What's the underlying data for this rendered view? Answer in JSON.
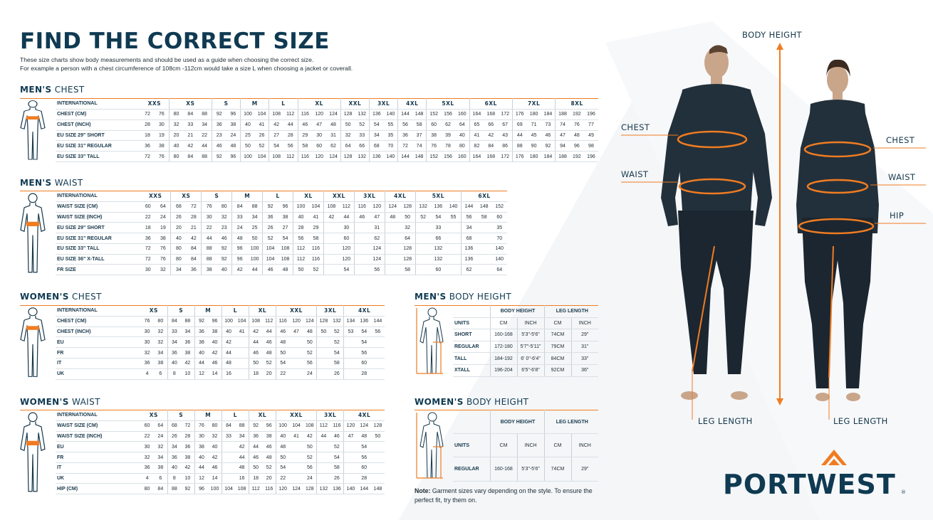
{
  "header": {
    "title": "FIND THE CORRECT SIZE",
    "intro_line1": "These size charts show body measurements and should be used as a guide when choosing the correct size.",
    "intro_line2": "For example a person with a chest circumference of 108cm -112cm would take a size L when choosing a jacket or coverall."
  },
  "colors": {
    "navy": "#0f3a52",
    "orange": "#f07c22"
  },
  "men_chest": {
    "title_bold": "MEN'S",
    "title_rest": "CHEST",
    "header_label": "INTERNATIONAL",
    "groups": [
      {
        "label": "XXS",
        "span": 2
      },
      {
        "label": "XS",
        "span": 3
      },
      {
        "label": "S",
        "span": 2
      },
      {
        "label": "M",
        "span": 2
      },
      {
        "label": "L",
        "span": 2
      },
      {
        "label": "XL",
        "span": 3
      },
      {
        "label": "XXL",
        "span": 2
      },
      {
        "label": "3XL",
        "span": 2
      },
      {
        "label": "4XL",
        "span": 2
      },
      {
        "label": "5XL",
        "span": 3
      },
      {
        "label": "6XL",
        "span": 3
      },
      {
        "label": "7XL",
        "span": 3
      },
      {
        "label": "8XL",
        "span": 3
      }
    ],
    "rows": [
      {
        "label": "CHEST (CM)",
        "values": [
          "72",
          "76",
          "80",
          "84",
          "88",
          "92",
          "96",
          "100",
          "104",
          "108",
          "112",
          "116",
          "120",
          "124",
          "128",
          "132",
          "136",
          "140",
          "144",
          "148",
          "152",
          "156",
          "160",
          "164",
          "168",
          "172",
          "176",
          "180",
          "184",
          "188",
          "192",
          "196"
        ]
      },
      {
        "label": "CHEST (INCH)",
        "values": [
          "28",
          "30",
          "32",
          "33",
          "34",
          "36",
          "38",
          "40",
          "41",
          "42",
          "44",
          "46",
          "47",
          "48",
          "50",
          "52",
          "54",
          "55",
          "56",
          "58",
          "60",
          "62",
          "64",
          "65",
          "66",
          "67",
          "69",
          "71",
          "73",
          "74",
          "76",
          "77"
        ]
      },
      {
        "label": "EU SIZE 29\" SHORT",
        "values": [
          "18",
          "19",
          "20",
          "21",
          "22",
          "23",
          "24",
          "25",
          "26",
          "27",
          "28",
          "29",
          "30",
          "31",
          "32",
          "33",
          "34",
          "35",
          "36",
          "37",
          "38",
          "39",
          "40",
          "41",
          "42",
          "43",
          "44",
          "45",
          "46",
          "47",
          "48",
          "49"
        ]
      },
      {
        "label": "EU SIZE 31\" REGULAR",
        "values": [
          "36",
          "38",
          "40",
          "42",
          "44",
          "46",
          "48",
          "50",
          "52",
          "54",
          "56",
          "58",
          "60",
          "62",
          "64",
          "66",
          "68",
          "70",
          "72",
          "74",
          "76",
          "78",
          "80",
          "82",
          "84",
          "86",
          "88",
          "90",
          "92",
          "94",
          "96",
          "98"
        ]
      },
      {
        "label": "EU SIZE 33\" TALL",
        "values": [
          "72",
          "76",
          "80",
          "84",
          "88",
          "92",
          "96",
          "100",
          "104",
          "108",
          "112",
          "116",
          "120",
          "124",
          "128",
          "132",
          "136",
          "140",
          "144",
          "148",
          "152",
          "156",
          "160",
          "164",
          "168",
          "172",
          "176",
          "180",
          "184",
          "188",
          "192",
          "196"
        ]
      }
    ]
  },
  "men_waist": {
    "title_bold": "MEN'S",
    "title_rest": "WAIST",
    "header_label": "INTERNATIONAL",
    "groups": [
      {
        "label": "XXS",
        "span": 2
      },
      {
        "label": "XS",
        "span": 2
      },
      {
        "label": "S",
        "span": 2
      },
      {
        "label": "M",
        "span": 2
      },
      {
        "label": "L",
        "span": 2
      },
      {
        "label": "XL",
        "span": 2
      },
      {
        "label": "XXL",
        "span": 2
      },
      {
        "label": "3XL",
        "span": 2
      },
      {
        "label": "4XL",
        "span": 2
      },
      {
        "label": "5XL",
        "span": 3
      },
      {
        "label": "6XL",
        "span": 3
      }
    ],
    "rows": [
      {
        "label": "WAIST SIZE (CM)",
        "values": [
          "60",
          "64",
          "68",
          "72",
          "76",
          "80",
          "84",
          "88",
          "92",
          "96",
          "100",
          "104",
          "108",
          "112",
          "116",
          "120",
          "124",
          "128",
          "132",
          "136",
          "140",
          "144",
          "148",
          "152"
        ]
      },
      {
        "label": "WAIST SIZE (INCH)",
        "values": [
          "22",
          "24",
          "26",
          "28",
          "30",
          "32",
          "33",
          "34",
          "36",
          "38",
          "40",
          "41",
          "42",
          "44",
          "46",
          "47",
          "48",
          "50",
          "52",
          "54",
          "55",
          "56",
          "58",
          "60"
        ]
      },
      {
        "label": "EU SIZE 29\" SHORT",
        "values": [
          "18",
          "19",
          "20",
          "21",
          "22",
          "23",
          "24",
          "25",
          "26",
          "27",
          "28",
          "29",
          "",
          "30",
          "",
          "31",
          "",
          "32",
          "",
          "33",
          "",
          "34",
          "",
          "35"
        ]
      },
      {
        "label": "EU SIZE 31\" REGULAR",
        "values": [
          "36",
          "38",
          "40",
          "42",
          "44",
          "46",
          "48",
          "50",
          "52",
          "54",
          "56",
          "58",
          "",
          "60",
          "",
          "62",
          "",
          "64",
          "",
          "66",
          "",
          "68",
          "",
          "70"
        ]
      },
      {
        "label": "EU SIZE 33\" TALL",
        "values": [
          "72",
          "76",
          "80",
          "84",
          "88",
          "92",
          "96",
          "100",
          "104",
          "108",
          "112",
          "116",
          "",
          "120",
          "",
          "124",
          "",
          "128",
          "",
          "132",
          "",
          "136",
          "",
          "140"
        ]
      },
      {
        "label": "EU SIZE 36\" X-TALL",
        "values": [
          "72",
          "76",
          "80",
          "84",
          "88",
          "92",
          "96",
          "100",
          "104",
          "108",
          "112",
          "116",
          "",
          "120",
          "",
          "124",
          "",
          "128",
          "",
          "132",
          "",
          "136",
          "",
          "140"
        ]
      },
      {
        "label": "FR SIZE",
        "values": [
          "30",
          "32",
          "34",
          "36",
          "38",
          "40",
          "42",
          "44",
          "46",
          "48",
          "50",
          "52",
          "",
          "54",
          "",
          "56",
          "",
          "58",
          "",
          "60",
          "",
          "62",
          "",
          "64"
        ]
      }
    ]
  },
  "women_chest": {
    "title_bold": "WOMEN'S",
    "title_rest": "CHEST",
    "header_label": "INTERNATIONAL",
    "groups": [
      {
        "label": "XS",
        "span": 2
      },
      {
        "label": "S",
        "span": 2
      },
      {
        "label": "M",
        "span": 2
      },
      {
        "label": "L",
        "span": 2
      },
      {
        "label": "XL",
        "span": 2
      },
      {
        "label": "XXL",
        "span": 3
      },
      {
        "label": "3XL",
        "span": 2
      },
      {
        "label": "4XL",
        "span": 3
      }
    ],
    "rows": [
      {
        "label": "CHEST (CM)",
        "values": [
          "76",
          "80",
          "84",
          "88",
          "92",
          "96",
          "100",
          "104",
          "108",
          "112",
          "116",
          "120",
          "124",
          "128",
          "132",
          "134",
          "136",
          "144"
        ]
      },
      {
        "label": "CHEST (INCH)",
        "values": [
          "30",
          "32",
          "33",
          "34",
          "36",
          "38",
          "40",
          "41",
          "42",
          "44",
          "46",
          "47",
          "48",
          "50",
          "52",
          "53",
          "54",
          "56"
        ]
      },
      {
        "label": "EU",
        "values": [
          "30",
          "32",
          "34",
          "36",
          "38",
          "40",
          "42",
          "",
          "44",
          "46",
          "48",
          "",
          "50",
          "",
          "52",
          "",
          "54",
          ""
        ]
      },
      {
        "label": "FR",
        "values": [
          "32",
          "34",
          "36",
          "38",
          "40",
          "42",
          "44",
          "",
          "46",
          "48",
          "50",
          "",
          "52",
          "",
          "54",
          "",
          "56",
          ""
        ]
      },
      {
        "label": "IT",
        "values": [
          "36",
          "38",
          "40",
          "42",
          "44",
          "46",
          "48",
          "",
          "50",
          "52",
          "54",
          "",
          "56",
          "",
          "58",
          "",
          "60",
          ""
        ]
      },
      {
        "label": "UK",
        "values": [
          "4",
          "6",
          "8",
          "10",
          "12",
          "14",
          "16",
          "",
          "18",
          "20",
          "22",
          "",
          "24",
          "",
          "26",
          "",
          "28",
          ""
        ]
      }
    ]
  },
  "women_waist": {
    "title_bold": "WOMEN'S",
    "title_rest": "WAIST",
    "header_label": "INTERNATIONAL",
    "groups": [
      {
        "label": "XS",
        "span": 2
      },
      {
        "label": "S",
        "span": 2
      },
      {
        "label": "M",
        "span": 2
      },
      {
        "label": "L",
        "span": 2
      },
      {
        "label": "XL",
        "span": 2
      },
      {
        "label": "XXL",
        "span": 3
      },
      {
        "label": "3XL",
        "span": 2
      },
      {
        "label": "4XL",
        "span": 3
      }
    ],
    "rows": [
      {
        "label": "WAIST SIZE (CM)",
        "values": [
          "60",
          "64",
          "68",
          "72",
          "76",
          "80",
          "84",
          "88",
          "92",
          "96",
          "100",
          "104",
          "108",
          "112",
          "116",
          "120",
          "124",
          "128"
        ]
      },
      {
        "label": "WAIST SIZE (INCH)",
        "values": [
          "22",
          "24",
          "26",
          "28",
          "30",
          "32",
          "33",
          "34",
          "36",
          "38",
          "40",
          "41",
          "42",
          "44",
          "46",
          "47",
          "48",
          "50"
        ]
      },
      {
        "label": "EU",
        "values": [
          "30",
          "32",
          "34",
          "36",
          "38",
          "40",
          "",
          "42",
          "44",
          "46",
          "48",
          "",
          "50",
          "",
          "52",
          "",
          "54",
          ""
        ]
      },
      {
        "label": "FR",
        "values": [
          "32",
          "34",
          "36",
          "38",
          "40",
          "42",
          "",
          "44",
          "46",
          "48",
          "50",
          "",
          "52",
          "",
          "54",
          "",
          "56",
          ""
        ]
      },
      {
        "label": "IT",
        "values": [
          "36",
          "38",
          "40",
          "42",
          "44",
          "46",
          "",
          "48",
          "50",
          "52",
          "54",
          "",
          "56",
          "",
          "58",
          "",
          "60",
          ""
        ]
      },
      {
        "label": "UK",
        "values": [
          "4",
          "6",
          "8",
          "10",
          "12",
          "14",
          "",
          "16",
          "18",
          "20",
          "22",
          "",
          "24",
          "",
          "26",
          "",
          "28",
          ""
        ]
      },
      {
        "label": "HIP (CM)",
        "values": [
          "80",
          "84",
          "88",
          "92",
          "96",
          "100",
          "104",
          "108",
          "112",
          "116",
          "120",
          "124",
          "128",
          "132",
          "136",
          "140",
          "144",
          "148"
        ]
      }
    ]
  },
  "men_height": {
    "title_bold": "MEN'S",
    "title_rest": "BODY HEIGHT",
    "groups": [
      "BODY HEIGHT",
      "LEG LENGTH"
    ],
    "units_label": "UNITS",
    "units": [
      "CM",
      "INCH",
      "CM",
      "INCH"
    ],
    "rows": [
      {
        "label": "SHORT",
        "values": [
          "160-168",
          "5'3\"-5'6\"",
          "74CM",
          "29\""
        ]
      },
      {
        "label": "REGULAR",
        "values": [
          "172-180",
          "5'7\"-5'11\"",
          "79CM",
          "31\""
        ]
      },
      {
        "label": "TALL",
        "values": [
          "184-192",
          "6' 0\"-6'4\"",
          "84CM",
          "33\""
        ]
      },
      {
        "label": "XTALL",
        "values": [
          "196-204",
          "6'5\"-6'8\"",
          "92CM",
          "36\""
        ]
      }
    ]
  },
  "women_height": {
    "title_bold": "WOMEN'S",
    "title_rest": "BODY HEIGHT",
    "groups": [
      "BODY HEIGHT",
      "LEG LENGTH"
    ],
    "units_label": "UNITS",
    "units": [
      "CM",
      "INCH",
      "CM",
      "INCH"
    ],
    "rows": [
      {
        "label": "REGULAR",
        "values": [
          "160-168",
          "5'3\"-5'6\"",
          "74CM",
          "29\""
        ]
      }
    ]
  },
  "note": {
    "bold": "Note:",
    "text": " Garment sizes vary depending on the style. To ensure the perfect fit, try them on."
  },
  "illustration": {
    "body_height": "BODY HEIGHT",
    "men_chest": "CHEST",
    "men_waist": "WAIST",
    "men_leg": "LEG LENGTH",
    "women_chest": "CHEST",
    "women_waist": "WAIST",
    "women_hip": "HIP",
    "women_leg": "LEG LENGTH"
  },
  "logo": {
    "text": "PORTWEST",
    "mark": "®"
  }
}
